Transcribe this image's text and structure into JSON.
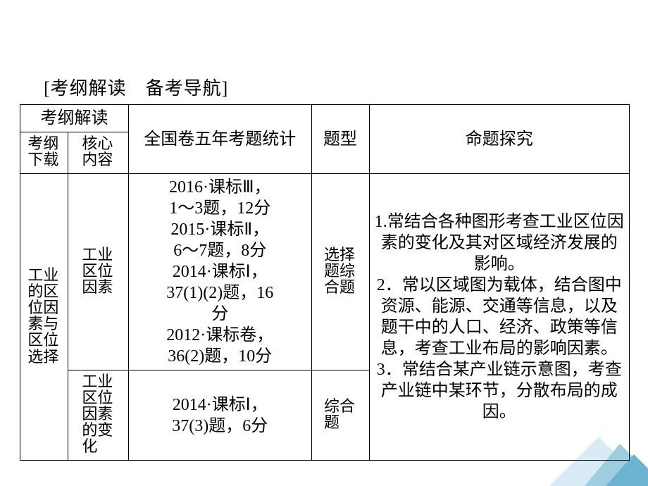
{
  "heading": "[考纲解读　备考导航]",
  "header": {
    "group": "考纲解读",
    "sub_a": "考纲下载",
    "sub_b": "核心内容",
    "col_stats": "全国卷五年考题统计",
    "col_type": "题型",
    "col_research": "命题探究"
  },
  "row1": {
    "topic": "工业的区位因素与区位选择",
    "core": "工业区位因素",
    "stats_1": "2016·课标Ⅲ，",
    "stats_2": "1～3题，12分",
    "stats_3": "2015·课标Ⅱ，",
    "stats_4": "6～7题，8分",
    "stats_5": "2014·课标Ⅰ，",
    "stats_6": "37(1)(2)题，16",
    "stats_7": "分",
    "stats_8": "2012·课标卷，",
    "stats_9": "36(2)题，10分",
    "type": "选择题综合题"
  },
  "row2": {
    "core": "工业区位因素的变化",
    "stats_1": "2014·课标Ⅰ，",
    "stats_2": "37(3)题，6分",
    "type": "综合题"
  },
  "research": "1.常结合各种图形考查工业区位因素的变化及其对区域经济发展的影响。\n2．常以区域图为载体，结合图中资源、能源、交通等信息，以及题干中的人口、经济、政策等信息，考查工业布局的影响因素。\n3．常结合某产业链示意图，考查产业链中某环节，分散布局的成因。",
  "colors": {
    "border": "#000000",
    "bg": "#ffffff",
    "deco_light": "#d9ecf5",
    "deco_mid": "#9fcde0",
    "deco_dark": "#6bb3cf"
  }
}
